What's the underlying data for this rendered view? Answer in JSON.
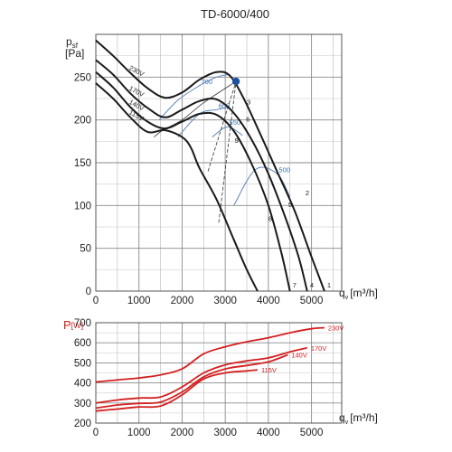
{
  "chart_data": [
    {
      "type": "line",
      "title": "TD-6000/400",
      "ylabel_main": "p",
      "ylabel_sub": "sf",
      "ylabel_unit": "[Pa]",
      "xlabel_main": "q",
      "xlabel_sub": "v",
      "xlabel_unit": "[m³/h]",
      "xlim": [
        0,
        5700
      ],
      "ylim": [
        0,
        300
      ],
      "x_ticks": [
        0,
        1000,
        2000,
        3000,
        4000,
        5000
      ],
      "y_ticks": [
        0,
        50,
        100,
        150,
        200,
        250
      ],
      "grid": true,
      "series": [
        {
          "name": "230V",
          "end_label": "1",
          "x": [
            0,
            400,
            800,
            1200,
            1600,
            2000,
            2400,
            2800,
            3100,
            3400,
            3800,
            4200,
            4600,
            5000,
            5300
          ],
          "y": [
            293,
            275,
            255,
            237,
            226,
            232,
            247,
            256,
            252,
            228,
            185,
            140,
            95,
            40,
            0
          ]
        },
        {
          "name": "170V",
          "end_label": "4",
          "x": [
            0,
            400,
            800,
            1200,
            1600,
            2000,
            2400,
            2800,
            3200,
            3600,
            4000,
            4400,
            4700,
            4900
          ],
          "y": [
            270,
            253,
            231,
            214,
            203,
            212,
            222,
            224,
            208,
            178,
            137,
            85,
            40,
            0
          ]
        },
        {
          "name": "140V",
          "end_label": "7",
          "x": [
            0,
            400,
            800,
            1200,
            1600,
            2000,
            2400,
            2800,
            3200,
            3600,
            4000,
            4300,
            4500
          ],
          "y": [
            256,
            238,
            215,
            198,
            190,
            198,
            207,
            206,
            187,
            150,
            100,
            45,
            0
          ]
        },
        {
          "name": "115V",
          "end_label": "",
          "x": [
            0,
            400,
            800,
            1200,
            1600,
            2000,
            2200,
            2400,
            2800,
            3200,
            3500,
            3750
          ],
          "y": [
            243,
            225,
            203,
            186,
            188,
            180,
            168,
            144,
            107,
            60,
            25,
            0
          ]
        }
      ],
      "system_curves": [
        {
          "label": "700",
          "x": [
            1470,
            1900,
            2400,
            2800,
            3080
          ],
          "y": [
            200,
            223,
            240,
            250,
            253
          ]
        },
        {
          "label": "600",
          "x": [
            1900,
            2400,
            2800,
            3100
          ],
          "y": [
            180,
            207,
            212,
            215
          ]
        },
        {
          "label": "550",
          "x": [
            2700,
            3050,
            3400
          ],
          "y": [
            180,
            192,
            182
          ]
        },
        {
          "label": "500",
          "x": [
            3200,
            3700,
            4200,
            4500
          ],
          "y": [
            100,
            142,
            137,
            110
          ]
        }
      ],
      "operating_lines": [
        {
          "x": [
            1350,
            1550,
            2000,
            2500,
            3250
          ],
          "y": [
            180,
            188,
            200,
            220,
            245
          ]
        },
        {
          "x": [
            2600,
            3250
          ],
          "y": [
            140,
            245
          ]
        },
        {
          "x": [
            2850,
            3250
          ],
          "y": [
            80,
            245
          ]
        }
      ],
      "highlight_point": {
        "x": 3250,
        "y": 245
      },
      "point_labels": [
        {
          "text": "3",
          "x": 3500,
          "y": 218
        },
        {
          "text": "2",
          "x": 4860,
          "y": 112
        },
        {
          "text": "5",
          "x": 4460,
          "y": 98
        },
        {
          "text": "8",
          "x": 4000,
          "y": 82
        },
        {
          "text": "6",
          "x": 3480,
          "y": 198
        },
        {
          "text": "9",
          "x": 3220,
          "y": 173
        }
      ],
      "highlight_color": "#1e4ea0",
      "line_color": "#1a1a1a",
      "system_color": "#5b85b8"
    },
    {
      "type": "line",
      "ylabel_main": "P",
      "ylabel_unit": "[W]",
      "xlabel_main": "q",
      "xlabel_sub": "v",
      "xlabel_unit": "[m³/h]",
      "xlim": [
        0,
        5700
      ],
      "ylim": [
        200,
        700
      ],
      "x_ticks": [
        0,
        1000,
        2000,
        3000,
        4000,
        5000
      ],
      "y_ticks": [
        200,
        300,
        400,
        500,
        600,
        700
      ],
      "grid": true,
      "series_color": "#d42020",
      "series": [
        {
          "name": "230V",
          "x": [
            0,
            500,
            1000,
            1500,
            2000,
            2500,
            3000,
            3500,
            4000,
            4500,
            5000,
            5300
          ],
          "y": [
            405,
            415,
            425,
            440,
            470,
            545,
            580,
            605,
            625,
            650,
            670,
            675
          ]
        },
        {
          "name": "170V",
          "x": [
            0,
            500,
            1000,
            1500,
            2000,
            2500,
            3000,
            3500,
            4000,
            4500,
            4900
          ],
          "y": [
            300,
            315,
            325,
            330,
            380,
            450,
            490,
            510,
            525,
            555,
            575
          ]
        },
        {
          "name": "140V",
          "x": [
            0,
            500,
            1000,
            1500,
            2000,
            2500,
            3000,
            3500,
            4000,
            4450
          ],
          "y": [
            275,
            290,
            298,
            305,
            355,
            430,
            470,
            487,
            505,
            540
          ]
        },
        {
          "name": "115V",
          "x": [
            0,
            500,
            1000,
            1500,
            2000,
            2500,
            3000,
            3500,
            3750
          ],
          "y": [
            260,
            270,
            280,
            285,
            340,
            420,
            450,
            460,
            465
          ]
        }
      ]
    }
  ]
}
